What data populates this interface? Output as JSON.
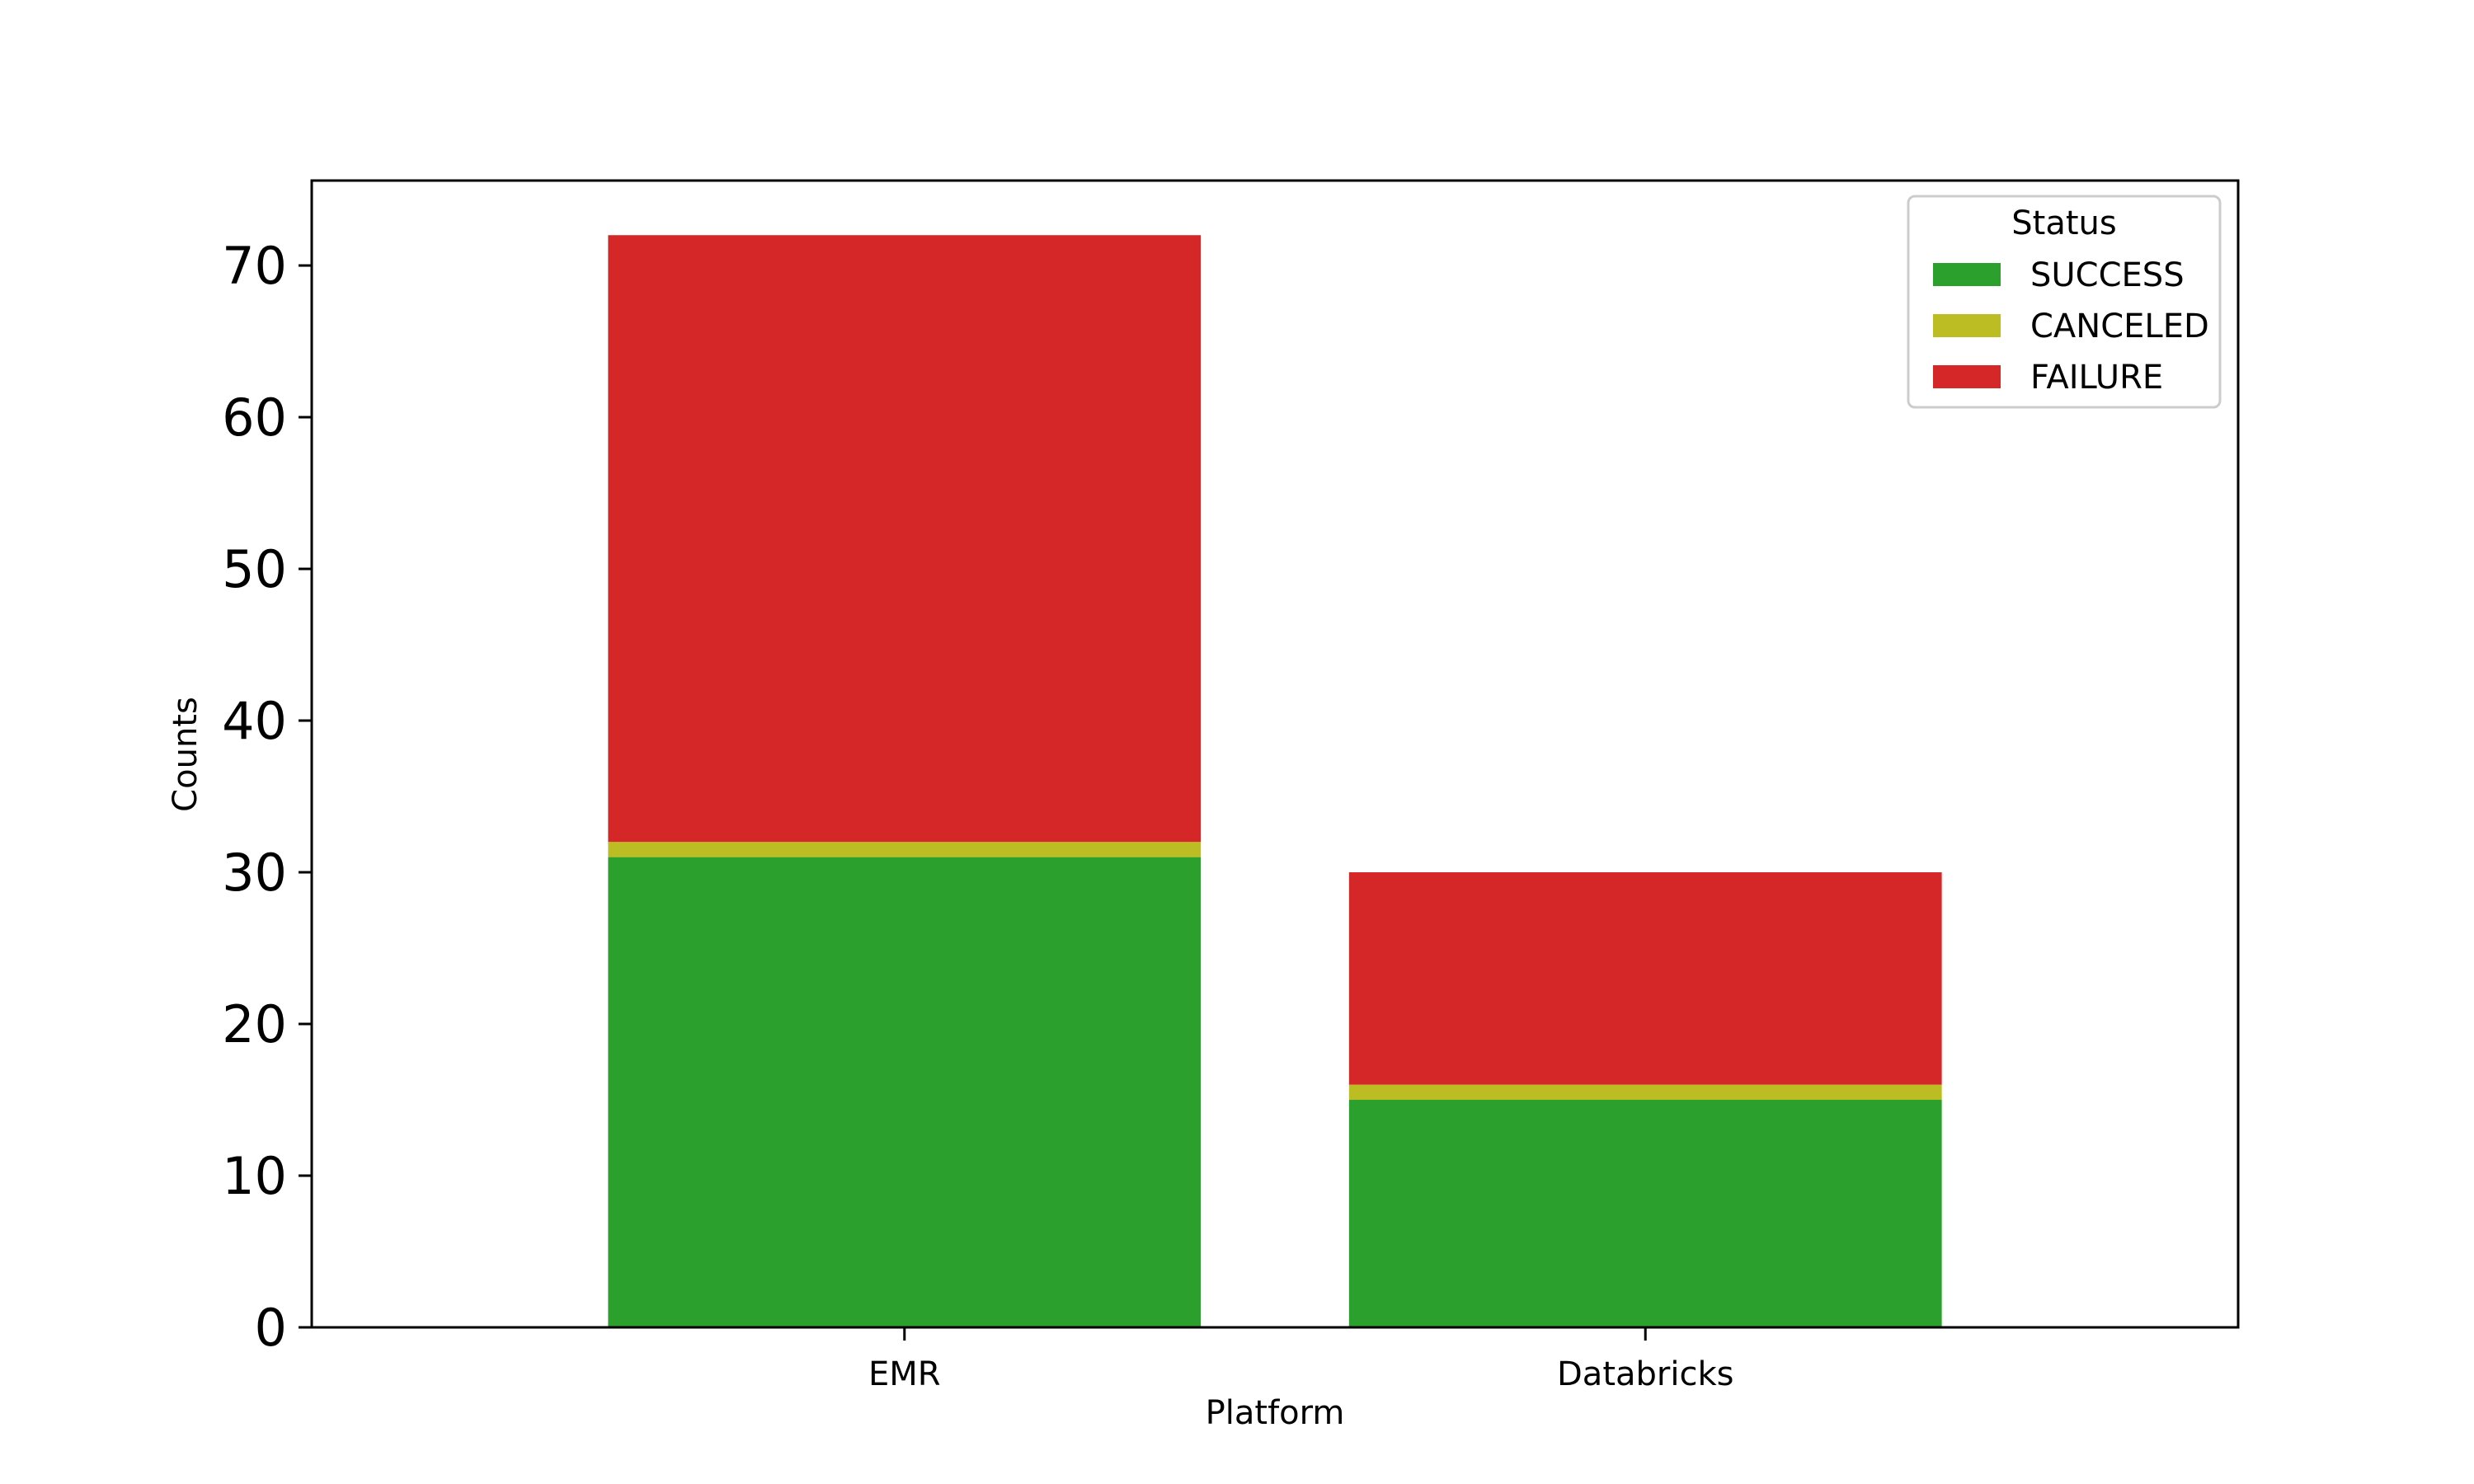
{
  "chart_data": {
    "type": "bar",
    "stacked": true,
    "categories": [
      "EMR",
      "Databricks"
    ],
    "series": [
      {
        "name": "SUCCESS",
        "values": [
          31,
          15
        ],
        "color": "#2ca02c"
      },
      {
        "name": "CANCELED",
        "values": [
          1,
          1
        ],
        "color": "#bcbd22"
      },
      {
        "name": "FAILURE",
        "values": [
          40,
          14
        ],
        "color": "#d62728"
      }
    ],
    "xlabel": "Platform",
    "ylabel": "Counts",
    "ylim": [
      0,
      75.6
    ],
    "yticks": [
      "0",
      "10",
      "20",
      "30",
      "40",
      "50",
      "60",
      "70"
    ],
    "grid": false,
    "legend": {
      "title": "Status",
      "placement": "top-right"
    }
  }
}
